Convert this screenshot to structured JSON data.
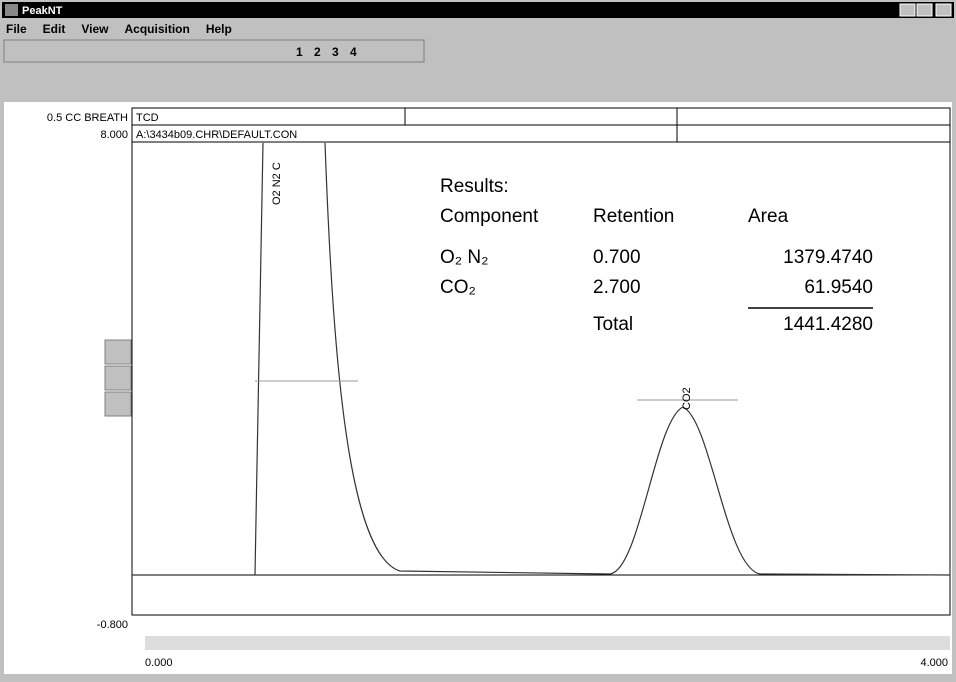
{
  "window": {
    "title": "PeakNT"
  },
  "menu": [
    "File",
    "Edit",
    "View",
    "Acquisition",
    "Help"
  ],
  "toolbar": {
    "channels": [
      "1",
      "2",
      "3",
      "4"
    ]
  },
  "header": {
    "sample": "0.5 CC BREATH",
    "detector": "TCD",
    "y_max": "8.000",
    "file": "A:\\3434b09.CHR\\DEFAULT.CON"
  },
  "peaks": [
    "O2 N2 C",
    "CO2"
  ],
  "results": {
    "title": "Results:",
    "columns": [
      "Component",
      "Retention",
      "Area"
    ],
    "rows": [
      [
        "O₂ N₂",
        "0.700",
        "1379.4740"
      ],
      [
        "CO₂",
        "2.700",
        "61.9540"
      ]
    ],
    "total_label": "Total",
    "total": "1441.4280"
  },
  "axis": {
    "y_min": "-0.800",
    "x_min": "0.000",
    "x_max": "4.000"
  }
}
